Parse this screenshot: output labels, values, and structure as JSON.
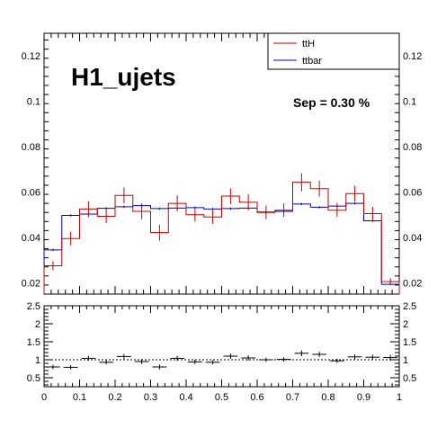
{
  "chart_data": [
    {
      "type": "histogram",
      "title": "H1_ujets",
      "annotation": "Sep = 0.30 %",
      "xlim": [
        0,
        1
      ],
      "ylim": [
        0.015,
        0.13
      ],
      "yticks": [
        "0.02",
        "0.04",
        "0.06",
        "0.08",
        "0.1",
        "0.12"
      ],
      "bin_edges": [
        0,
        0.05,
        0.1,
        0.15,
        0.2,
        0.25,
        0.3,
        0.35,
        0.4,
        0.45,
        0.5,
        0.55,
        0.6,
        0.65,
        0.7,
        0.75,
        0.8,
        0.85,
        0.9,
        0.95,
        1.0
      ],
      "legend_position": "top-right",
      "series": [
        {
          "name": "ttH",
          "color": "#cc0000",
          "values": [
            0.0275,
            0.0395,
            0.0525,
            0.0493,
            0.0585,
            0.0515,
            0.0421,
            0.055,
            0.05,
            0.049,
            0.0582,
            0.0555,
            0.051,
            0.052,
            0.0643,
            0.0615,
            0.052,
            0.0593,
            0.0505,
            0.0205
          ],
          "errors": [
            0.002,
            0.003,
            0.0035,
            0.003,
            0.0035,
            0.0035,
            0.0035,
            0.0035,
            0.003,
            0.003,
            0.0035,
            0.0035,
            0.003,
            0.003,
            0.004,
            0.0035,
            0.003,
            0.0035,
            0.003,
            0.0015
          ]
        },
        {
          "name": "ttbar",
          "color": "#0000cc",
          "values": [
            0.0345,
            0.0497,
            0.0503,
            0.0528,
            0.0535,
            0.054,
            0.0527,
            0.0529,
            0.0531,
            0.0525,
            0.0527,
            0.0529,
            0.0512,
            0.0515,
            0.0547,
            0.0533,
            0.0538,
            0.055,
            0.0473,
            0.0193
          ],
          "errors": [
            0.0005,
            0.0005,
            0.0005,
            0.0005,
            0.0005,
            0.0005,
            0.0005,
            0.0005,
            0.0005,
            0.0005,
            0.0005,
            0.0005,
            0.0005,
            0.0005,
            0.0005,
            0.0005,
            0.0005,
            0.0005,
            0.0005,
            0.0005
          ]
        }
      ]
    },
    {
      "type": "ratio",
      "xlim": [
        0,
        1
      ],
      "ylim": [
        0.25,
        2.5
      ],
      "xticks": [
        "0",
        "0.1",
        "0.2",
        "0.3",
        "0.4",
        "0.5",
        "0.6",
        "0.7",
        "0.8",
        "0.9",
        "1"
      ],
      "yticks": [
        "0.5",
        "1",
        "1.5",
        "2",
        "2.5"
      ],
      "reference_line": 1,
      "bin_edges": [
        0,
        0.05,
        0.1,
        0.15,
        0.2,
        0.25,
        0.3,
        0.35,
        0.4,
        0.45,
        0.5,
        0.55,
        0.6,
        0.65,
        0.7,
        0.75,
        0.8,
        0.85,
        0.9,
        0.95,
        1.0
      ],
      "values": [
        0.8,
        0.79,
        1.04,
        0.93,
        1.09,
        0.95,
        0.8,
        1.04,
        0.94,
        0.93,
        1.1,
        1.05,
        1.0,
        1.01,
        1.18,
        1.15,
        0.97,
        1.08,
        1.07,
        1.06
      ],
      "errors": [
        0.06,
        0.06,
        0.07,
        0.06,
        0.07,
        0.07,
        0.07,
        0.07,
        0.06,
        0.06,
        0.07,
        0.07,
        0.06,
        0.06,
        0.08,
        0.07,
        0.06,
        0.07,
        0.07,
        0.08
      ]
    }
  ]
}
